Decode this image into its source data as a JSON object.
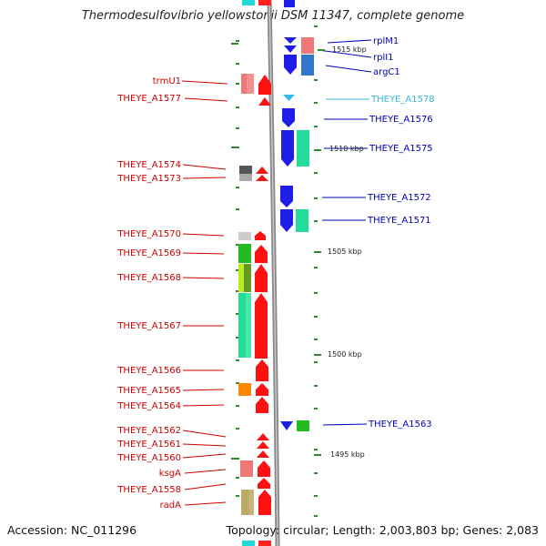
{
  "title": "Thermodesulfovibrio yellowstonii DSM 11347, complete genome",
  "accession": "Accession: NC_011296",
  "summary": "Topology: circular; Length: 2,003,803 bp; Genes: 2,083",
  "colors": {
    "left_label": "#cc0000",
    "right_label": "#0000bb",
    "highlight_label": "#33bbdd",
    "backbone": "#888888",
    "tick": "#2e8b2e"
  },
  "kbp_marks": [
    {
      "label": "1515 kbp"
    },
    {
      "label": "1510 kbp"
    },
    {
      "label": "1505 kbp"
    },
    {
      "label": "1500 kbp"
    },
    {
      "label": "1495 kbp"
    }
  ],
  "left_genes": [
    {
      "name": "trmU1"
    },
    {
      "name": "THEYE_A1577"
    },
    {
      "name": "THEYE_A1574"
    },
    {
      "name": "THEYE_A1573"
    },
    {
      "name": "THEYE_A1570"
    },
    {
      "name": "THEYE_A1569"
    },
    {
      "name": "THEYE_A1568"
    },
    {
      "name": "THEYE_A1567"
    },
    {
      "name": "THEYE_A1566"
    },
    {
      "name": "THEYE_A1565"
    },
    {
      "name": "THEYE_A1564"
    },
    {
      "name": "THEYE_A1562"
    },
    {
      "name": "THEYE_A1561"
    },
    {
      "name": "THEYE_A1560"
    },
    {
      "name": "ksgA"
    },
    {
      "name": "THEYE_A1558"
    },
    {
      "name": "radA"
    }
  ],
  "right_genes": [
    {
      "name": "rplM1"
    },
    {
      "name": "rplI1"
    },
    {
      "name": "argC1"
    },
    {
      "name": "THEYE_A1578",
      "highlight": true
    },
    {
      "name": "THEYE_A1576"
    },
    {
      "name": "THEYE_A1575"
    },
    {
      "name": "THEYE_A1572"
    },
    {
      "name": "THEYE_A1571"
    },
    {
      "name": "THEYE_A1563"
    }
  ]
}
